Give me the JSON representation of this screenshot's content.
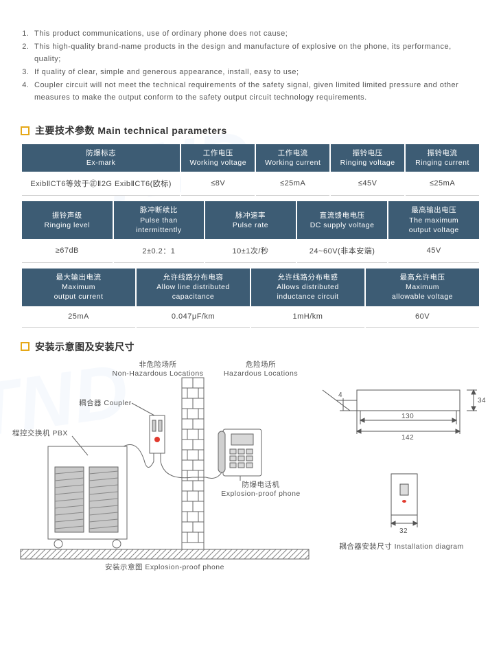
{
  "intro": {
    "items": [
      "This product communications, use of ordinary phone does not cause;",
      "This high-quality brand-name products in the design and manufacture of explosive on the phone, its performance, quality;",
      "If quality of clear, simple and generous appearance, install, easy to use;",
      "Coupler circuit will not meet the technical requirements of the safety signal, given limited limited pressure and other measures to make the output conform to the safety output circuit technology requirements."
    ]
  },
  "section1": {
    "title": "主要技术参数  Main technical parameters"
  },
  "section2": {
    "title": "安装示意图及安装尺寸"
  },
  "tables": {
    "t1": {
      "headers": [
        "防爆标志\nEx-mark",
        "工作电压\nWorking voltage",
        "工作电流\nWorking current",
        "振铃电压\nRinging voltage",
        "振铃电流\nRinging current"
      ],
      "row": [
        "ExibⅡCT6等效于㊣Ⅱ2G ExibⅡCT6(欧标)",
        "≤8V",
        "≤25mA",
        "≤45V",
        "≤25mA"
      ],
      "widths": [
        "35%",
        "16.25%",
        "16.25%",
        "16.25%",
        "16.25%"
      ]
    },
    "t2": {
      "headers": [
        "振铃声级\nRinging level",
        "脉冲断续比\nPulse than\nintermittently",
        "脉冲速率\nPulse rate",
        "直流馈电电压\nDC supply voltage",
        "最高输出电压\nThe maximum\noutput voltage"
      ],
      "row": [
        "≥67dB",
        "2±0.2：1",
        "10±1次/秒",
        "24~60V(非本安端)",
        "45V"
      ],
      "widths": [
        "20%",
        "20%",
        "20%",
        "20%",
        "20%"
      ]
    },
    "t3": {
      "headers": [
        "最大输出电流\nMaximum\noutput current",
        "允许线路分布电容\nAllow line distributed\ncapacitance",
        "允许线路分布电感\nAllows distributed\ninductance circuit",
        "最高允许电压\nMaximum\nallowable voltage"
      ],
      "row": [
        "25mA",
        "0.047μF/km",
        "1mH/km",
        "60V"
      ],
      "widths": [
        "25%",
        "25%",
        "25%",
        "25%"
      ]
    }
  },
  "diagram": {
    "labels": {
      "nonhaz_cn": "非危险场所",
      "nonhaz_en": "Non-Hazardous Locations",
      "haz_cn": "危险场所",
      "haz_en": "Hazardous Locations",
      "coupler": "耦合器 Coupler",
      "pbx": "程控交换机 PBX",
      "phone_cn": "防爆电话机",
      "phone_en": "Explosion-proof phone",
      "caption": "安装示意图 Explosion-proof phone",
      "install_caption": "耦合器安装尺寸 Installation diagram"
    },
    "dims": {
      "w": "142",
      "w_inner": "130",
      "h": "34",
      "h_inner": "4",
      "box_w": "32"
    },
    "colors": {
      "line": "#666666",
      "brick_fill": "#ffffff",
      "shade": "#bfbfbf",
      "accent": "#e13a2e"
    }
  }
}
